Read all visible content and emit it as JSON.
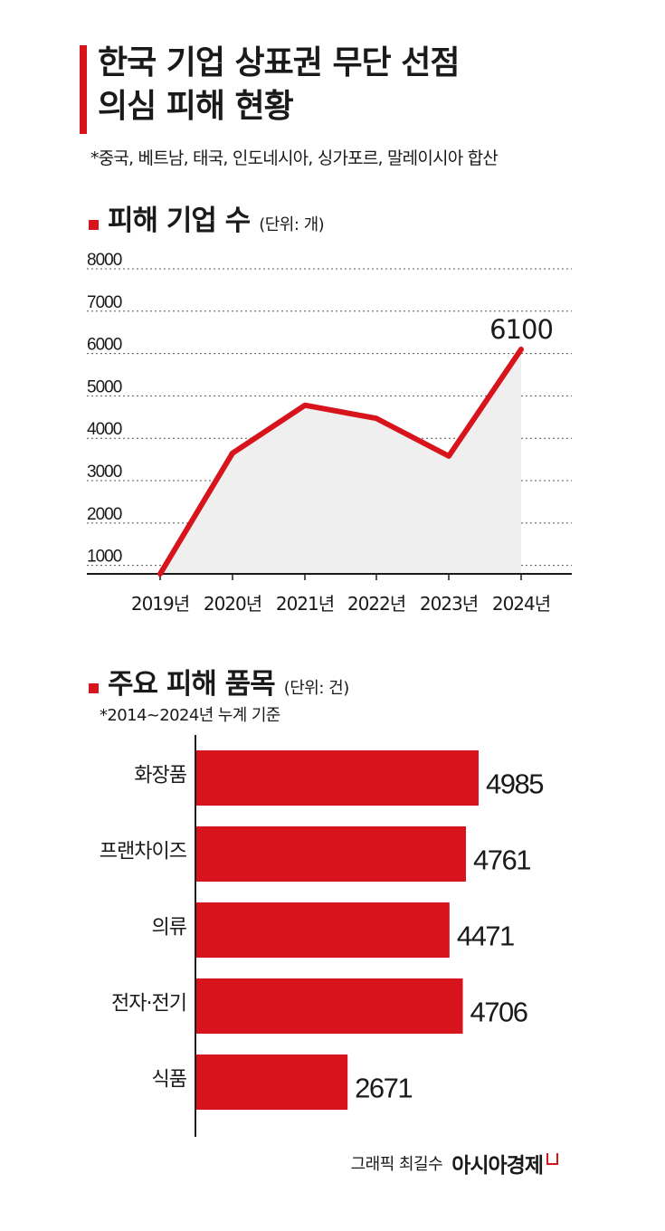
{
  "header": {
    "title_line1": "한국 기업 상표권 무단 선점",
    "title_line2": "의심 피해 현황",
    "note": "*중국, 베트남, 태국, 인도네시아, 싱가포르, 말레이시아 합산"
  },
  "section1": {
    "title": "피해 기업 수",
    "unit": "(단위: 개)"
  },
  "section2": {
    "title": "주요 피해 품목",
    "unit": "(단위: 건)",
    "note": "*2014~2024년 누계 기준"
  },
  "colors": {
    "accent": "#d7141c",
    "area_fill": "#efefef",
    "grid": "#555555"
  },
  "chart_data": [
    {
      "type": "line",
      "title": "피해 기업 수",
      "ylabel": "(단위: 개)",
      "x": [
        "2019년",
        "2020년",
        "2021년",
        "2022년",
        "2023년",
        "2024년"
      ],
      "y_ticks": [
        1000,
        2000,
        3000,
        4000,
        5000,
        6000,
        7000,
        8000
      ],
      "ylim": [
        800,
        8000
      ],
      "series": [
        {
          "values": [
            800,
            3650,
            4780,
            4470,
            3580,
            6100
          ]
        }
      ],
      "annotations": [
        {
          "x": "2024년",
          "label": "6100"
        }
      ],
      "area_fill": true,
      "grid": "horizontal-dotted"
    },
    {
      "type": "bar",
      "orientation": "horizontal",
      "title": "주요 피해 품목",
      "ylabel": "(단위: 건)",
      "categories": [
        "화장품",
        "프랜차이즈",
        "의류",
        "전자·전기",
        "식품"
      ],
      "values": [
        4985,
        4761,
        4471,
        4706,
        2671
      ],
      "labels": [
        "4985",
        "4761",
        "4471",
        "4706",
        "2671"
      ],
      "xlim": [
        0,
        4985
      ]
    }
  ],
  "credit": {
    "author": "그래픽 최길수",
    "brand": "아시아경제"
  }
}
